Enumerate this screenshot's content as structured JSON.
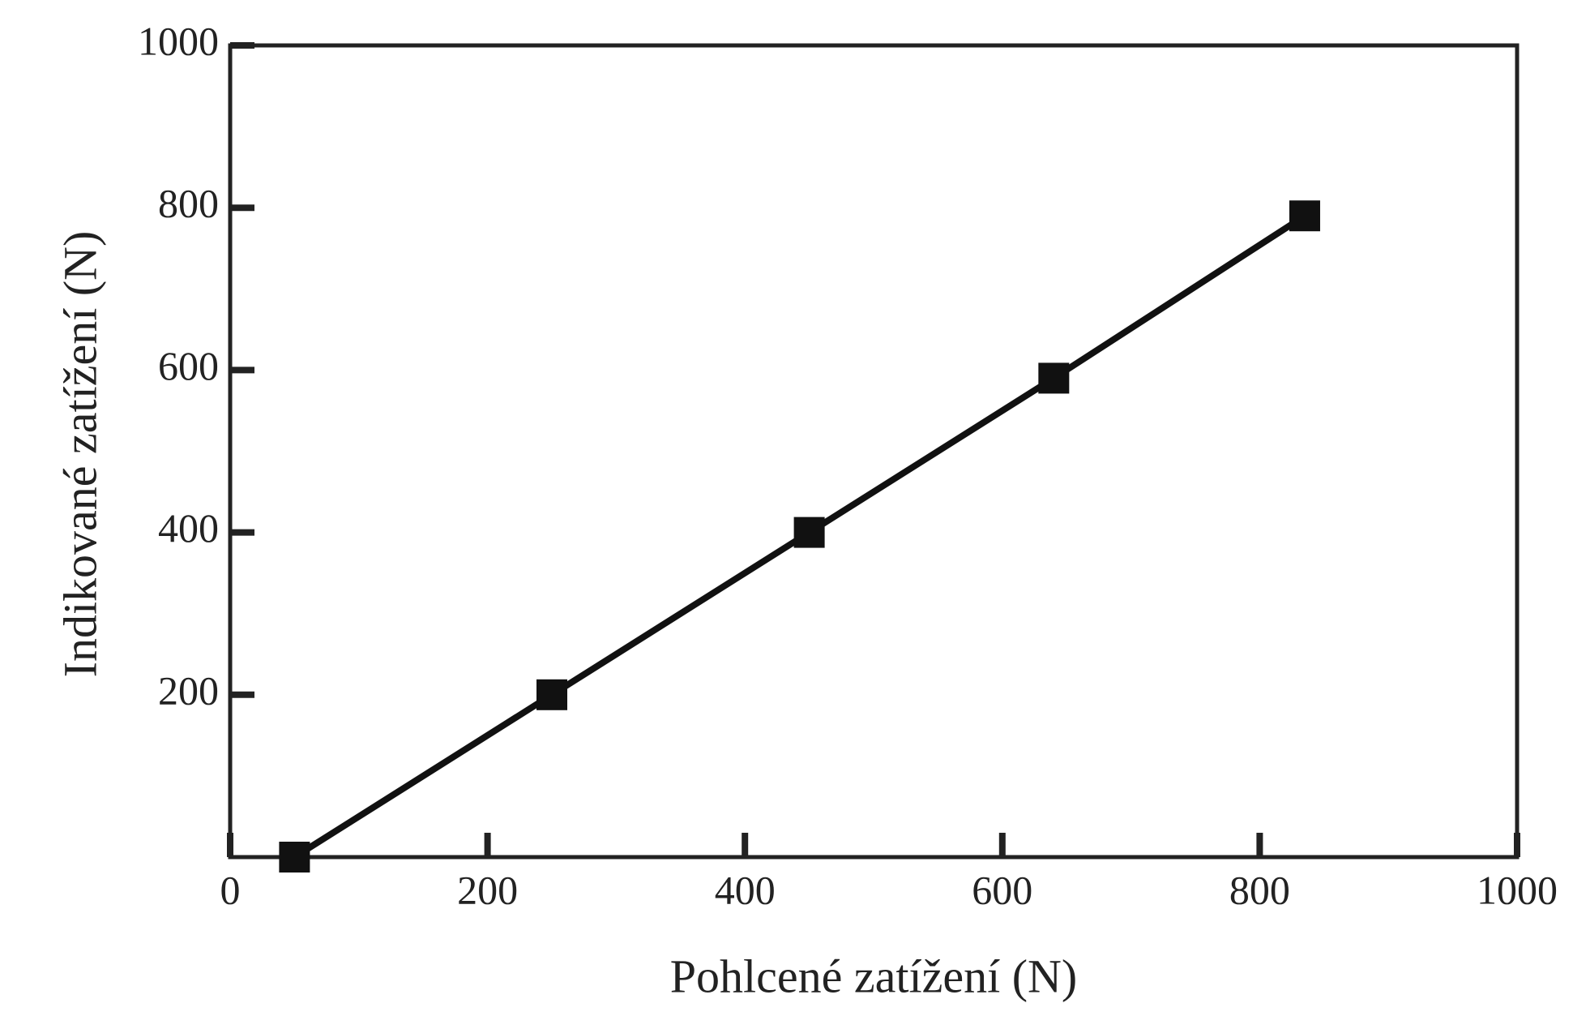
{
  "chart_data": {
    "type": "line",
    "x_label": "Pohlcené zatížení (N)",
    "y_label": "Indikované zatížení (N)",
    "x": [
      50,
      250,
      450,
      640,
      835
    ],
    "values": [
      0,
      200,
      400,
      590,
      790
    ],
    "color": "#111111",
    "marker": "square",
    "xlim": [
      0,
      1000
    ],
    "xticks": [
      0,
      200,
      400,
      600,
      800,
      1000
    ],
    "ylim": [
      0,
      1000
    ],
    "yticks": [
      200,
      400,
      600,
      800,
      1000
    ]
  }
}
